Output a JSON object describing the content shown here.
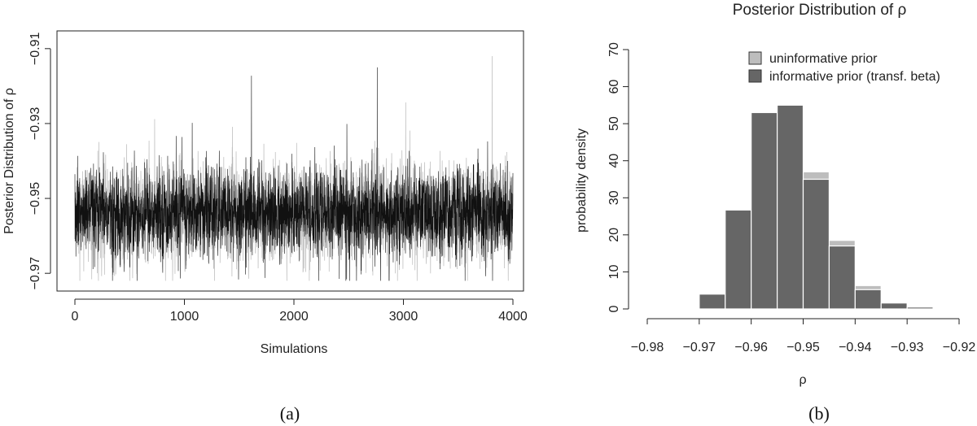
{
  "chart_data": [
    {
      "type": "line",
      "panel_caption": "(a)",
      "title": "",
      "xlabel": "Simulations",
      "ylabel": "Posterior Distribution of ρ",
      "xlim": [
        0,
        4000
      ],
      "ylim": [
        -0.973,
        -0.907
      ],
      "x_ticks": [
        0,
        1000,
        2000,
        3000,
        4000
      ],
      "x_tick_labels": [
        "0",
        "1000",
        "2000",
        "3000",
        "4000"
      ],
      "y_ticks": [
        -0.97,
        -0.95,
        -0.93,
        -0.91
      ],
      "y_tick_labels": [
        "−0.97",
        "−0.95",
        "−0.93",
        "−0.91"
      ],
      "grid": false,
      "series": [
        {
          "color": "#b8b8b8",
          "n_draws": 4000,
          "center": -0.954,
          "typical_range": [
            -0.965,
            -0.944
          ],
          "max": -0.912,
          "max_at": 3810,
          "min": -0.972
        },
        {
          "color": "#111111",
          "n_draws": 4000,
          "center": -0.954,
          "typical_range": [
            -0.964,
            -0.945
          ],
          "max": -0.915,
          "max_at": 2760,
          "min": -0.972
        }
      ]
    },
    {
      "type": "bar",
      "panel_caption": "(b)",
      "title": "Posterior Distribution of ρ",
      "xlabel": "ρ",
      "ylabel": "probability density",
      "xlim": [
        -0.98,
        -0.92
      ],
      "ylim": [
        0,
        70
      ],
      "x_ticks": [
        -0.98,
        -0.97,
        -0.96,
        -0.95,
        -0.94,
        -0.93,
        -0.92
      ],
      "x_tick_labels": [
        "−0.98",
        "−0.97",
        "−0.96",
        "−0.95",
        "−0.94",
        "−0.93",
        "−0.92"
      ],
      "y_ticks": [
        0,
        10,
        20,
        30,
        40,
        50,
        60,
        70
      ],
      "y_tick_labels": [
        "0",
        "10",
        "20",
        "30",
        "40",
        "50",
        "60",
        "70"
      ],
      "grid": false,
      "bin_edges": [
        -0.975,
        -0.97,
        -0.965,
        -0.96,
        -0.955,
        -0.95,
        -0.945,
        -0.94,
        -0.935,
        -0.93,
        -0.925,
        -0.92
      ],
      "legend_position": "top-right",
      "series": [
        {
          "name": "uninformative prior",
          "color": "#bdbdbd",
          "values": [
            0.2,
            3.8,
            22.5,
            52.0,
            54.8,
            37.0,
            18.5,
            6.3,
            1.5,
            0.4,
            0.2
          ]
        },
        {
          "name": "informative prior (transf. beta)",
          "color": "#666666",
          "values": [
            0.1,
            4.0,
            26.7,
            53.0,
            55.0,
            35.0,
            17.0,
            5.2,
            1.6,
            0.5,
            0.1
          ]
        }
      ]
    }
  ]
}
